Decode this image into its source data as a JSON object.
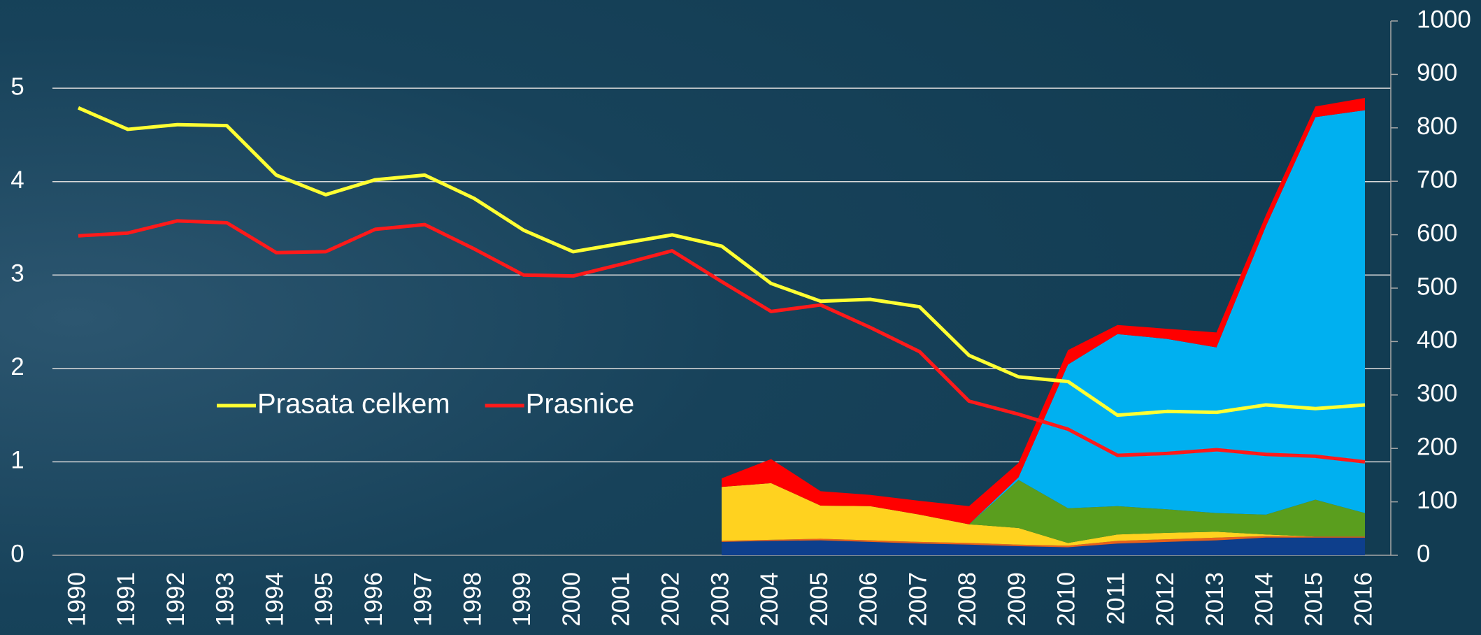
{
  "chart_data": {
    "type": "line",
    "categories": [
      "1990",
      "1991",
      "1992",
      "1993",
      "1994",
      "1995",
      "1996",
      "1997",
      "1998",
      "1999",
      "2000",
      "2001",
      "2002",
      "2003",
      "2004",
      "2005",
      "2006",
      "2007",
      "2008",
      "2009",
      "2010",
      "2011",
      "2012",
      "2013",
      "2014",
      "2015",
      "2016"
    ],
    "series": [
      {
        "type": "area",
        "axis": "y2",
        "color": "#0e3f8c",
        "values": [
          null,
          null,
          null,
          null,
          null,
          null,
          null,
          null,
          null,
          null,
          null,
          null,
          null,
          25,
          27,
          28,
          25,
          22,
          20,
          17,
          15,
          22,
          25,
          28,
          33,
          33,
          33
        ]
      },
      {
        "type": "area",
        "axis": "y2",
        "color": "#e8601c",
        "values": [
          null,
          null,
          null,
          null,
          null,
          null,
          null,
          null,
          null,
          null,
          null,
          null,
          null,
          2,
          2,
          3,
          3,
          3,
          3,
          3,
          3,
          5,
          5,
          5,
          3,
          2,
          2
        ]
      },
      {
        "type": "area",
        "axis": "y2",
        "color": "#ffd21f",
        "values": [
          null,
          null,
          null,
          null,
          null,
          null,
          null,
          null,
          null,
          null,
          null,
          null,
          null,
          101,
          106,
          62,
          64,
          51,
          35,
          31,
          5,
          12,
          12,
          11,
          3,
          0,
          0
        ]
      },
      {
        "type": "area",
        "axis": "y2",
        "color": "#5a9e1e",
        "values": [
          null,
          null,
          null,
          null,
          null,
          null,
          null,
          null,
          null,
          null,
          null,
          null,
          null,
          0,
          0,
          0,
          0,
          0,
          0,
          90,
          65,
          53,
          44,
          35,
          37,
          69,
          44
        ]
      },
      {
        "type": "area",
        "axis": "y2",
        "color": "#00b0f0",
        "values": [
          null,
          null,
          null,
          null,
          null,
          null,
          null,
          null,
          null,
          null,
          null,
          null,
          null,
          0,
          0,
          0,
          0,
          0,
          0,
          5,
          269,
          322,
          319,
          310,
          540,
          716,
          754
        ]
      },
      {
        "type": "area",
        "axis": "y2",
        "color": "#ff0000",
        "values": [
          null,
          null,
          null,
          null,
          null,
          null,
          null,
          null,
          null,
          null,
          null,
          null,
          null,
          16,
          45,
          27,
          21,
          26,
          34,
          27,
          27,
          17,
          19,
          28,
          21,
          20,
          23
        ]
      },
      {
        "name": "Prasata celkem",
        "type": "line",
        "axis": "y",
        "color": "#ffff33",
        "values": [
          4.79,
          4.56,
          4.61,
          4.6,
          4.07,
          3.86,
          4.02,
          4.07,
          3.82,
          3.48,
          3.25,
          3.34,
          3.43,
          3.31,
          2.91,
          2.72,
          2.74,
          2.66,
          2.14,
          1.91,
          1.86,
          1.5,
          1.54,
          1.53,
          1.61,
          1.57,
          1.61
        ]
      },
      {
        "name": "Prasnice",
        "type": "line",
        "axis": "y",
        "color": "#ff1a1a",
        "values": [
          3.42,
          3.45,
          3.58,
          3.56,
          3.24,
          3.25,
          3.49,
          3.54,
          3.28,
          3.0,
          2.99,
          3.12,
          3.26,
          2.93,
          2.61,
          2.68,
          2.44,
          2.18,
          1.65,
          1.51,
          1.35,
          1.07,
          1.09,
          1.13,
          1.08,
          1.06,
          1.0
        ]
      }
    ],
    "ylim": [
      0,
      5.72
    ],
    "yticks": [
      0,
      1,
      2,
      3,
      4,
      5
    ],
    "y2lim": [
      0,
      1000
    ],
    "y2ticks": [
      0,
      100,
      200,
      300,
      400,
      500,
      600,
      700,
      800,
      900,
      1000
    ],
    "grid": true,
    "legend": "left"
  }
}
